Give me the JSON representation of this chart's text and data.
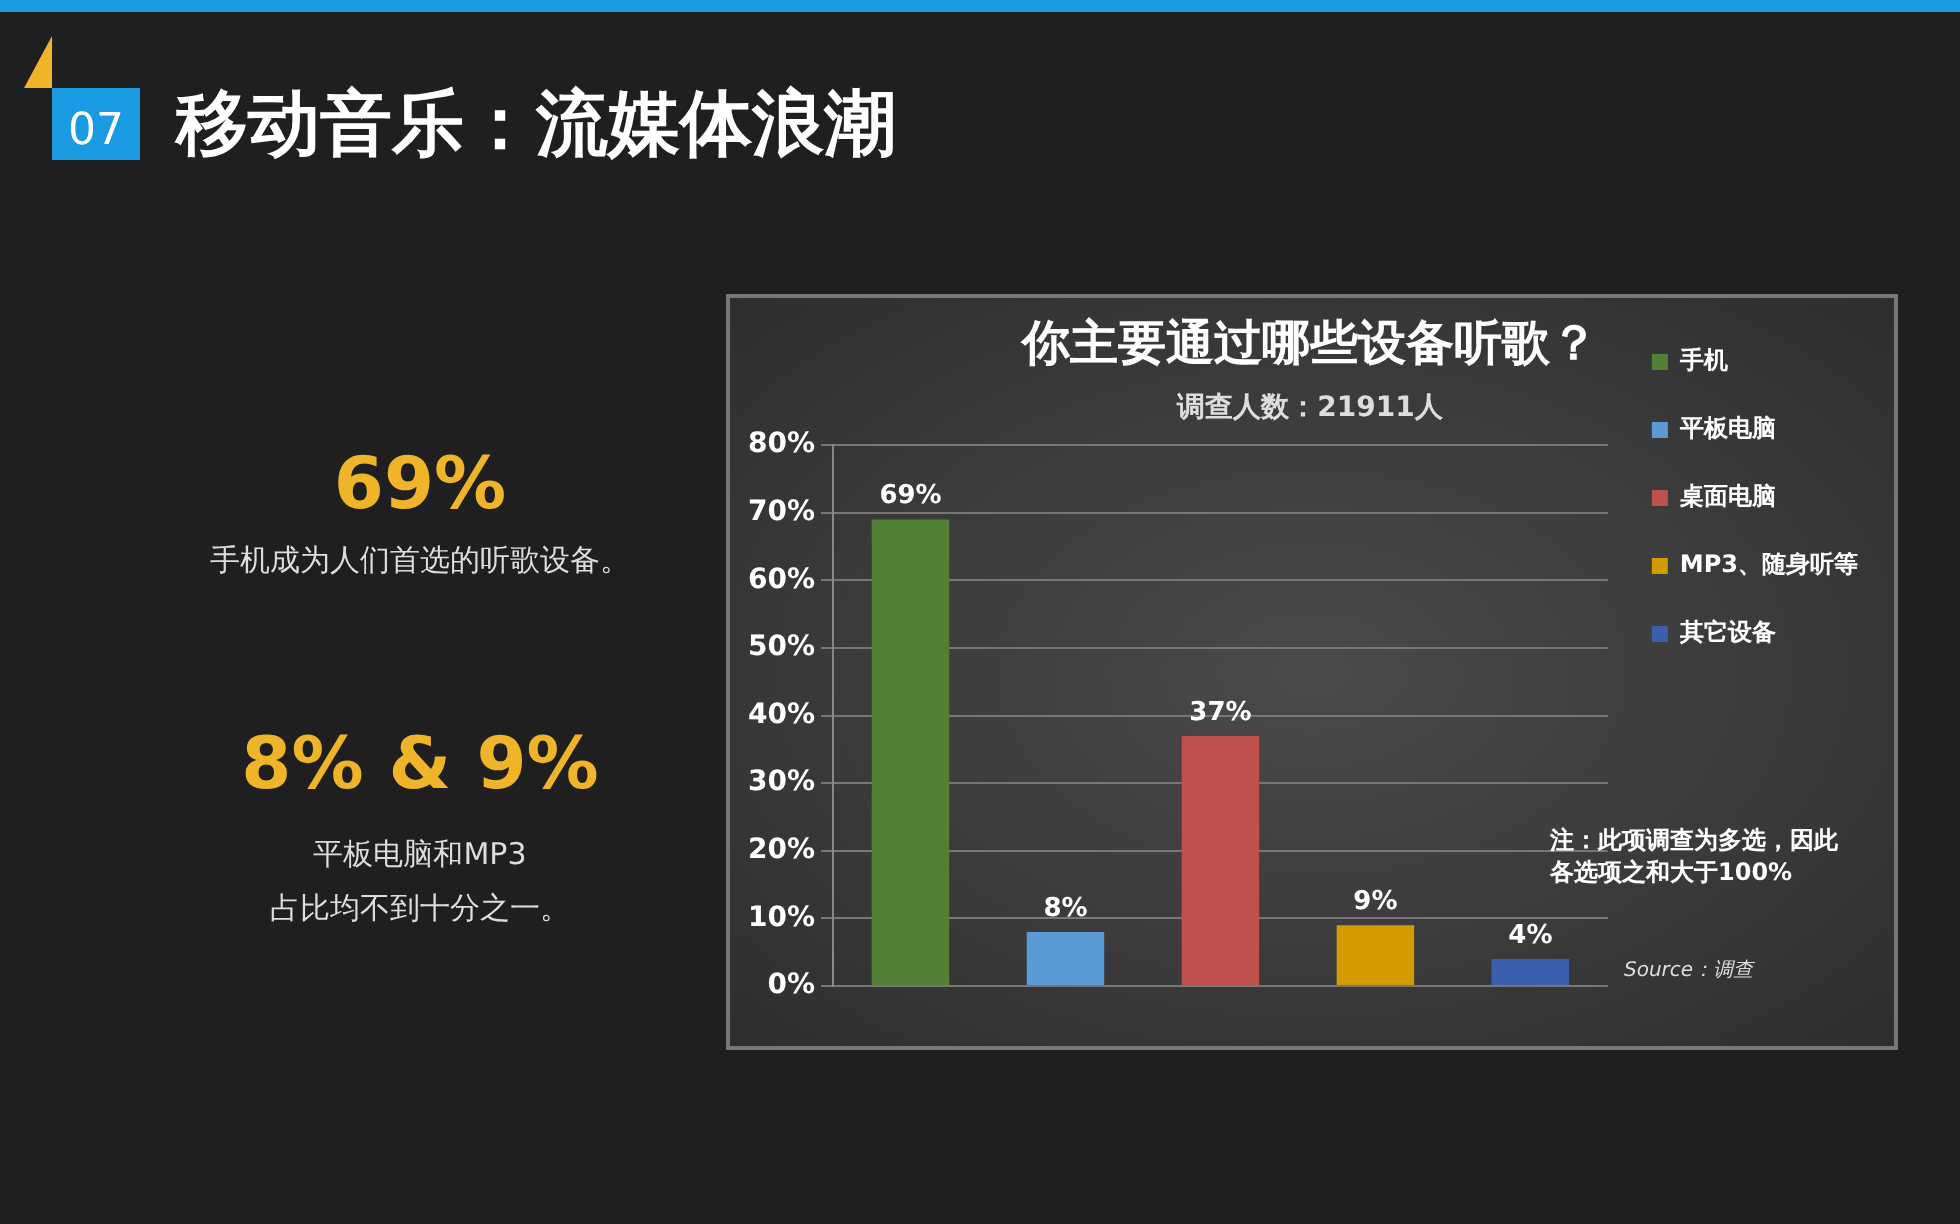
{
  "chart_data": {
    "type": "bar",
    "title": "你主要通过哪些设备听歌？",
    "subtitle": "调查人数：21911人",
    "categories": [
      null
    ],
    "series": [
      {
        "name": "手机",
        "color": "#528135",
        "values": [
          69
        ],
        "value_labels": [
          "69%"
        ]
      },
      {
        "name": "平板电脑",
        "color": "#5b9bd5",
        "values": [
          8
        ],
        "value_labels": [
          "8%"
        ]
      },
      {
        "name": "桌面电脑",
        "color": "#c0504d",
        "values": [
          37
        ],
        "value_labels": [
          "37%"
        ]
      },
      {
        "name": "MP3、随身听等",
        "color": "#d39b00",
        "values": [
          9
        ],
        "value_labels": [
          "9%"
        ]
      },
      {
        "name": "其它设备",
        "color": "#3a5fae",
        "values": [
          4
        ],
        "value_labels": [
          "4%"
        ]
      }
    ],
    "ylim": [
      0,
      80
    ],
    "yticks": [
      {
        "value": 0,
        "label": "0%"
      },
      {
        "value": 10,
        "label": "10%"
      },
      {
        "value": 20,
        "label": "20%"
      },
      {
        "value": 30,
        "label": "30%"
      },
      {
        "value": 40,
        "label": "40%"
      },
      {
        "value": 50,
        "label": "50%"
      },
      {
        "value": 60,
        "label": "60%"
      },
      {
        "value": 70,
        "label": "70%"
      },
      {
        "value": 80,
        "label": "80%"
      }
    ],
    "grid": "y",
    "legend": "right",
    "tick_labels": "y",
    "annotations": [
      "注：此项调查为多选，因此各选项之和大于100%",
      "Source：调查",
      "07",
      "移动音乐：流媒体浪潮",
      "69%",
      "手机成为人们首选的听歌设备。",
      "8% & 9%",
      "平板电脑和MP3\n占比均不到十分之一。"
    ]
  }
}
